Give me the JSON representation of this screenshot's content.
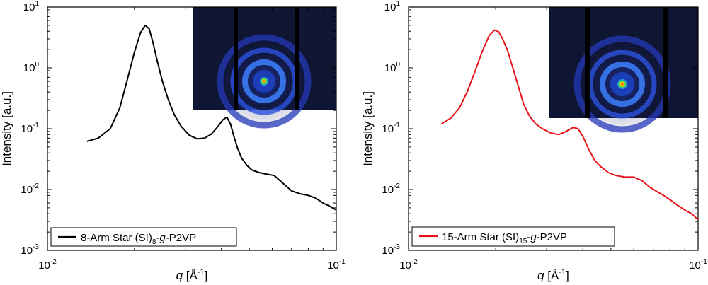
{
  "chart_data": [
    {
      "type": "line",
      "xscale": "log",
      "yscale": "log",
      "xlim": [
        0.01,
        0.1
      ],
      "ylim": [
        0.001,
        10
      ],
      "xlabel": {
        "var": "q",
        "unit": " [Å",
        "sup": "-1",
        "close": "]"
      },
      "ylabel": "Intensity [a.u.]",
      "xticks": [
        {
          "base": "10",
          "exp": "-2"
        },
        {
          "base": "10",
          "exp": "-1"
        }
      ],
      "yticks": [
        {
          "base": "10",
          "exp": "-3"
        },
        {
          "base": "10",
          "exp": "-2"
        },
        {
          "base": "10",
          "exp": "-1"
        },
        {
          "base": "10",
          "exp": "0"
        },
        {
          "base": "10",
          "exp": "1"
        }
      ],
      "legend": {
        "prefix": "8-Arm Star (SI)",
        "sub": "8",
        "dash": "-",
        "italic": "g",
        "suffix": "-P2VP",
        "placement": "bottom-left"
      },
      "inset": "saxs-2d-pattern",
      "series": [
        {
          "name": "8-Arm Star (SI)8-g-P2VP",
          "color": "#000000",
          "x": [
            0.0137,
            0.015,
            0.0165,
            0.0178,
            0.019,
            0.02,
            0.021,
            0.0218,
            0.0225,
            0.0232,
            0.024,
            0.025,
            0.0262,
            0.0275,
            0.029,
            0.031,
            0.033,
            0.035,
            0.037,
            0.039,
            0.0405,
            0.0418,
            0.043,
            0.0442,
            0.0455,
            0.047,
            0.049,
            0.051,
            0.054,
            0.057,
            0.061,
            0.065,
            0.07,
            0.075,
            0.08,
            0.085,
            0.09,
            0.095,
            0.1
          ],
          "y": [
            0.062,
            0.07,
            0.1,
            0.22,
            0.7,
            1.8,
            3.8,
            5.0,
            4.4,
            2.6,
            1.3,
            0.6,
            0.3,
            0.17,
            0.11,
            0.078,
            0.068,
            0.07,
            0.082,
            0.11,
            0.14,
            0.155,
            0.12,
            0.075,
            0.048,
            0.033,
            0.025,
            0.021,
            0.019,
            0.018,
            0.017,
            0.013,
            0.0095,
            0.0085,
            0.008,
            0.0072,
            0.006,
            0.0053,
            0.0046
          ]
        }
      ]
    },
    {
      "type": "line",
      "xscale": "log",
      "yscale": "log",
      "xlim": [
        0.01,
        0.1
      ],
      "ylim": [
        0.001,
        10
      ],
      "xlabel": {
        "var": "q",
        "unit": " [Å",
        "sup": "-1",
        "close": "]"
      },
      "ylabel": "Intensity [a.u.]",
      "xticks": [
        {
          "base": "10",
          "exp": "-2"
        },
        {
          "base": "10",
          "exp": "-1"
        }
      ],
      "yticks": [
        {
          "base": "10",
          "exp": "-3"
        },
        {
          "base": "10",
          "exp": "-2"
        },
        {
          "base": "10",
          "exp": "-1"
        },
        {
          "base": "10",
          "exp": "0"
        },
        {
          "base": "10",
          "exp": "1"
        }
      ],
      "legend": {
        "prefix": "15-Arm Star (SI)",
        "sub": "15",
        "dash": "-",
        "italic": "g",
        "suffix": "-P2VP",
        "placement": "bottom-left"
      },
      "inset": "saxs-2d-pattern",
      "series": [
        {
          "name": "15-Arm Star (SI)15-g-P2VP",
          "color": "#e8141c",
          "x": [
            0.013,
            0.014,
            0.015,
            0.016,
            0.017,
            0.018,
            0.019,
            0.0198,
            0.0205,
            0.0212,
            0.022,
            0.023,
            0.024,
            0.025,
            0.0262,
            0.0275,
            0.029,
            0.031,
            0.033,
            0.035,
            0.037,
            0.0385,
            0.04,
            0.042,
            0.044,
            0.046,
            0.049,
            0.052,
            0.056,
            0.06,
            0.064,
            0.068,
            0.072,
            0.076,
            0.08,
            0.085,
            0.09,
            0.095,
            0.1
          ],
          "y": [
            0.12,
            0.15,
            0.22,
            0.42,
            0.9,
            1.9,
            3.4,
            4.2,
            3.9,
            2.9,
            1.9,
            0.95,
            0.48,
            0.25,
            0.16,
            0.12,
            0.1,
            0.085,
            0.08,
            0.09,
            0.105,
            0.1,
            0.075,
            0.045,
            0.03,
            0.024,
            0.019,
            0.017,
            0.016,
            0.016,
            0.014,
            0.011,
            0.0093,
            0.008,
            0.0068,
            0.0055,
            0.0046,
            0.004,
            0.0032
          ]
        }
      ]
    }
  ]
}
